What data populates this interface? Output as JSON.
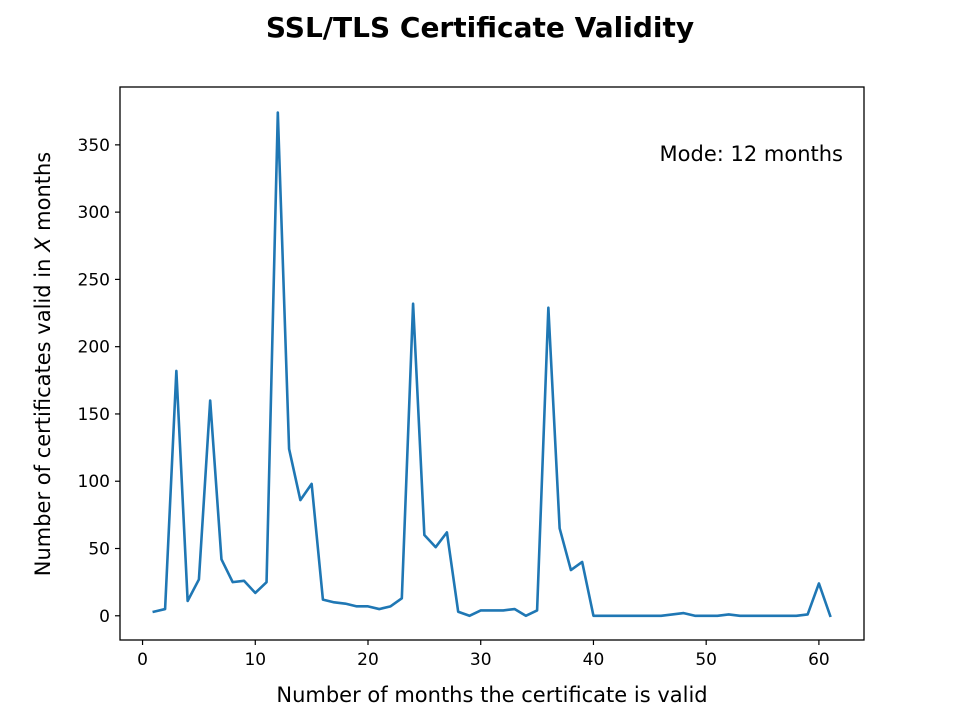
{
  "chart_data": {
    "type": "line",
    "title": "SSL/TLS Certificate Validity",
    "xlabel": "Number of months the certificate is valid",
    "ylabel_prefix": "Number of certificates valid in ",
    "ylabel_var": "X",
    "ylabel_suffix": " months",
    "annotation": "Mode: 12 months",
    "xlim": [
      -2,
      64
    ],
    "ylim": [
      -18,
      393
    ],
    "xticks": [
      0,
      10,
      20,
      30,
      40,
      50,
      60
    ],
    "yticks": [
      0,
      50,
      100,
      150,
      200,
      250,
      300,
      350
    ],
    "series_color": "#1f77b4",
    "grid": false,
    "x": [
      1,
      2,
      3,
      4,
      5,
      6,
      7,
      8,
      9,
      10,
      11,
      12,
      13,
      14,
      15,
      16,
      17,
      18,
      19,
      20,
      21,
      22,
      23,
      24,
      25,
      26,
      27,
      28,
      29,
      30,
      31,
      32,
      33,
      34,
      35,
      36,
      37,
      38,
      39,
      40,
      41,
      42,
      43,
      44,
      45,
      46,
      47,
      48,
      49,
      50,
      51,
      52,
      53,
      54,
      55,
      56,
      57,
      58,
      59,
      60,
      61
    ],
    "values": [
      3,
      5,
      182,
      11,
      27,
      160,
      42,
      25,
      26,
      17,
      25,
      374,
      124,
      86,
      98,
      12,
      10,
      9,
      7,
      7,
      5,
      7,
      13,
      232,
      60,
      51,
      62,
      3,
      0,
      4,
      4,
      4,
      5,
      0,
      4,
      229,
      65,
      34,
      40,
      0,
      0,
      0,
      0,
      0,
      0,
      0,
      1,
      2,
      0,
      0,
      0,
      1,
      0,
      0,
      0,
      0,
      0,
      0,
      1,
      24,
      0
    ]
  }
}
